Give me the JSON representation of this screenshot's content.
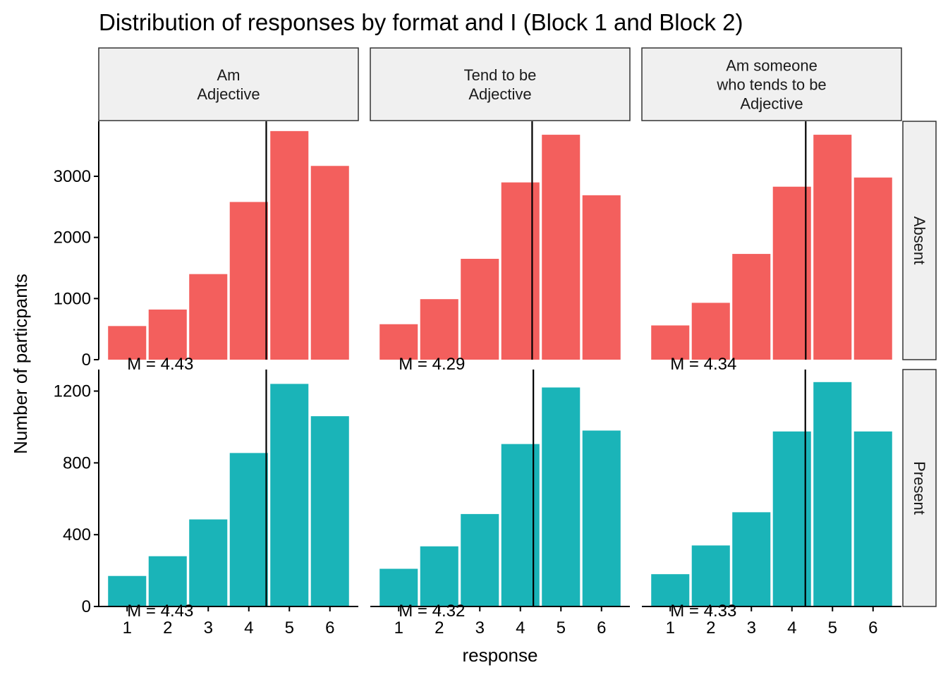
{
  "chart_data": {
    "type": "bar",
    "title": "Distribution of responses by format and I (Block 1 and Block 2)",
    "xlabel": "response",
    "ylabel": "Number of particpants",
    "categories": [
      "1",
      "2",
      "3",
      "4",
      "5",
      "6"
    ],
    "columns": [
      {
        "label_lines": [
          "Am",
          "Adjective"
        ]
      },
      {
        "label_lines": [
          "Tend to be",
          "Adjective"
        ]
      },
      {
        "label_lines": [
          "Am someone",
          "who tends to be",
          "Adjective"
        ]
      }
    ],
    "rows": [
      {
        "label": "Absent",
        "color": "#F35F5D",
        "ylim": [
          0,
          3900
        ],
        "yticks": [
          0,
          1000,
          2000,
          3000
        ],
        "ytick_labels": [
          "0",
          "1000",
          "2000",
          "3000"
        ]
      },
      {
        "label": "Present",
        "color": "#1AB4B8",
        "ylim": [
          0,
          1320
        ],
        "yticks": [
          0,
          400,
          800,
          1200
        ],
        "ytick_labels": [
          "0",
          "400",
          "800",
          "1200"
        ]
      }
    ],
    "panels": [
      {
        "row": 0,
        "col": 0,
        "values": [
          550,
          820,
          1400,
          2580,
          3740,
          3170
        ],
        "mean": 4.43,
        "mean_label": "M = 4.43"
      },
      {
        "row": 0,
        "col": 1,
        "values": [
          580,
          990,
          1650,
          2900,
          3680,
          2690
        ],
        "mean": 4.29,
        "mean_label": "M = 4.29"
      },
      {
        "row": 0,
        "col": 2,
        "values": [
          560,
          930,
          1730,
          2830,
          3680,
          2980
        ],
        "mean": 4.34,
        "mean_label": "M = 4.34"
      },
      {
        "row": 1,
        "col": 0,
        "values": [
          170,
          280,
          485,
          855,
          1240,
          1060
        ],
        "mean": 4.43,
        "mean_label": "M = 4.43"
      },
      {
        "row": 1,
        "col": 1,
        "values": [
          210,
          335,
          515,
          905,
          1220,
          980
        ],
        "mean": 4.32,
        "mean_label": "M = 4.32"
      },
      {
        "row": 1,
        "col": 2,
        "values": [
          180,
          340,
          525,
          975,
          1250,
          975
        ],
        "mean": 4.33,
        "mean_label": "M = 4.33"
      }
    ],
    "grid": false,
    "legend": "none"
  }
}
